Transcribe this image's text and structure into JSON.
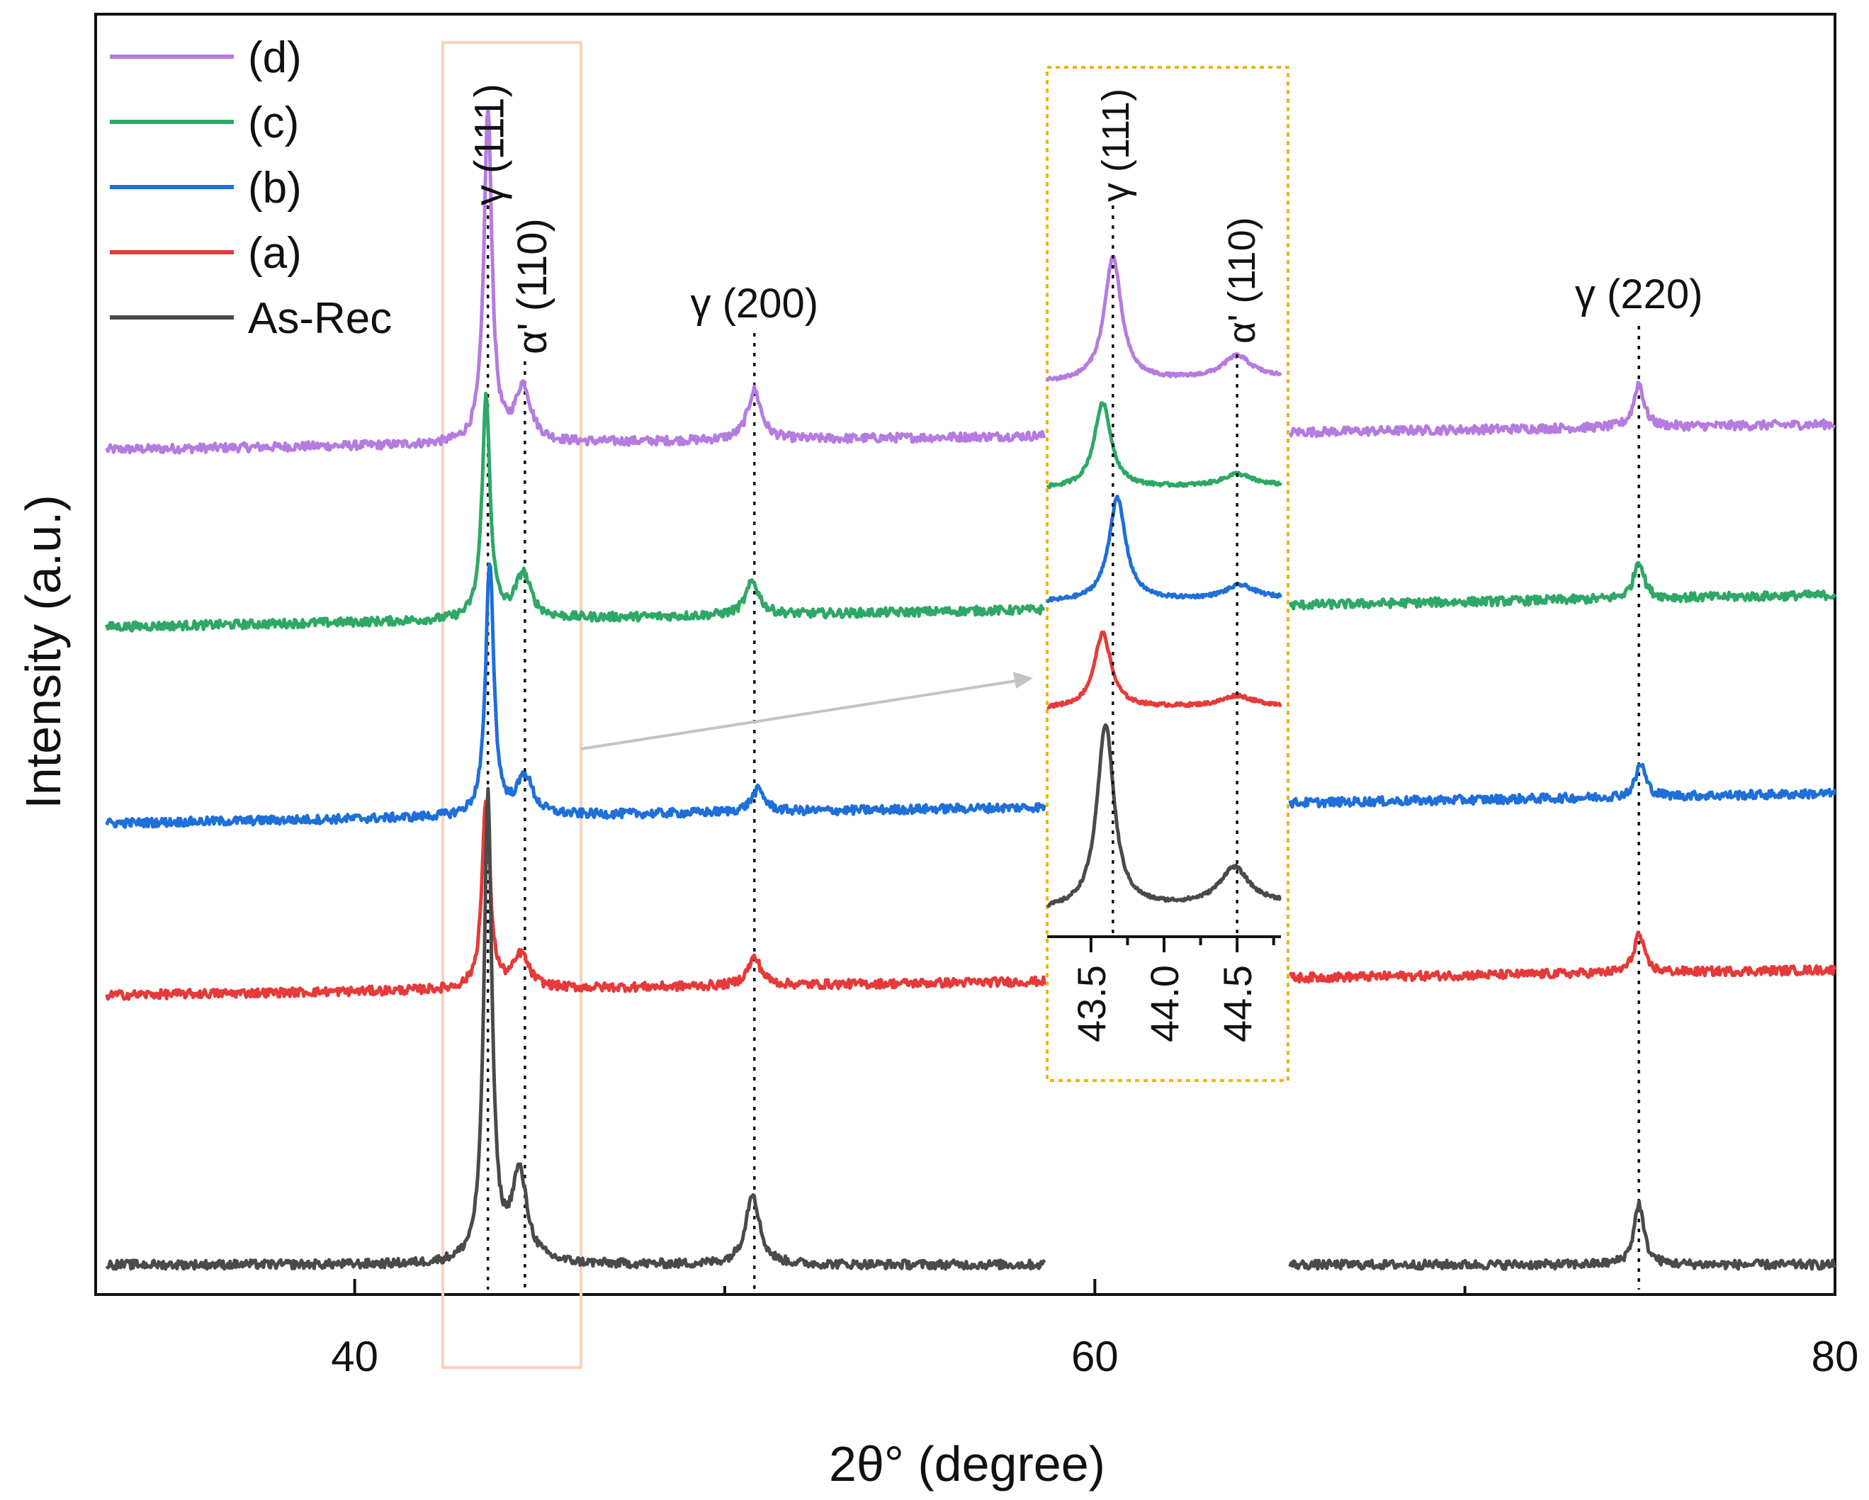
{
  "chart_data": {
    "type": "line",
    "title": "",
    "xlabel": "2θ° (degree)",
    "ylabel": "Intensity (a.u.)",
    "xlim": [
      33,
      80
    ],
    "xticks_major": [
      40,
      60,
      80
    ],
    "xtick_labels": [
      "40",
      "60",
      "80"
    ],
    "xticks_minor": [
      50,
      70
    ],
    "legend_position": "top-left",
    "series": [
      {
        "name": "(d)",
        "color": "#b57be0",
        "baseline_start": 0.735,
        "baseline_end": 0.758,
        "peaks": [
          [
            43.6,
            0.3,
            0.13
          ],
          [
            44.55,
            0.05,
            0.25
          ],
          [
            50.8,
            0.045,
            0.22
          ],
          [
            74.7,
            0.04,
            0.16
          ]
        ]
      },
      {
        "name": "(c)",
        "color": "#2ea866",
        "baseline_start": 0.575,
        "baseline_end": 0.604,
        "peaks": [
          [
            43.55,
            0.2,
            0.13
          ],
          [
            44.55,
            0.04,
            0.25
          ],
          [
            50.75,
            0.03,
            0.22
          ],
          [
            74.7,
            0.035,
            0.16
          ]
        ]
      },
      {
        "name": "(b)",
        "color": "#1e6fd9",
        "baseline_start": 0.398,
        "baseline_end": 0.425,
        "peaks": [
          [
            43.65,
            0.23,
            0.13
          ],
          [
            44.6,
            0.035,
            0.25
          ],
          [
            50.9,
            0.02,
            0.22
          ],
          [
            74.75,
            0.03,
            0.16
          ]
        ]
      },
      {
        "name": "(a)",
        "color": "#e63a3a",
        "baseline_start": 0.243,
        "baseline_end": 0.266,
        "peaks": [
          [
            43.55,
            0.17,
            0.13
          ],
          [
            44.5,
            0.03,
            0.25
          ],
          [
            50.8,
            0.025,
            0.22
          ],
          [
            74.7,
            0.035,
            0.16
          ]
        ]
      },
      {
        "name": "As-Rec",
        "color": "#4a4a4a",
        "baseline_start": 0.0,
        "baseline_end": 0.0,
        "peaks": [
          [
            43.6,
            0.42,
            0.13
          ],
          [
            44.45,
            0.08,
            0.25
          ],
          [
            50.75,
            0.065,
            0.22
          ],
          [
            74.7,
            0.055,
            0.16
          ]
        ]
      }
    ],
    "annotations": [
      {
        "text": "γ (111)",
        "x": 43.6
      },
      {
        "text": "α' (110)",
        "x": 44.6
      },
      {
        "text": "γ (200)",
        "x": 50.8
      },
      {
        "text": "γ (220)",
        "x": 74.7
      }
    ],
    "inset": {
      "xlim": [
        43.2,
        44.8
      ],
      "xticks_major": [
        43.5,
        44.0,
        44.5
      ],
      "xtick_labels": [
        "43.5",
        "44.0",
        "44.5"
      ],
      "xticks_minor": [
        43.75,
        44.25,
        44.75
      ],
      "annotations": [
        {
          "text": "γ (111)",
          "x": 43.65
        },
        {
          "text": "α' (110)",
          "x": 44.5
        }
      ],
      "peak_positions": {
        "(d)": [
          43.65,
          44.5
        ],
        "(c)": [
          43.58,
          44.5
        ],
        "(b)": [
          43.68,
          44.52
        ],
        "(a)": [
          43.58,
          44.5
        ],
        "As-Rec": [
          43.6,
          44.48
        ]
      }
    }
  }
}
